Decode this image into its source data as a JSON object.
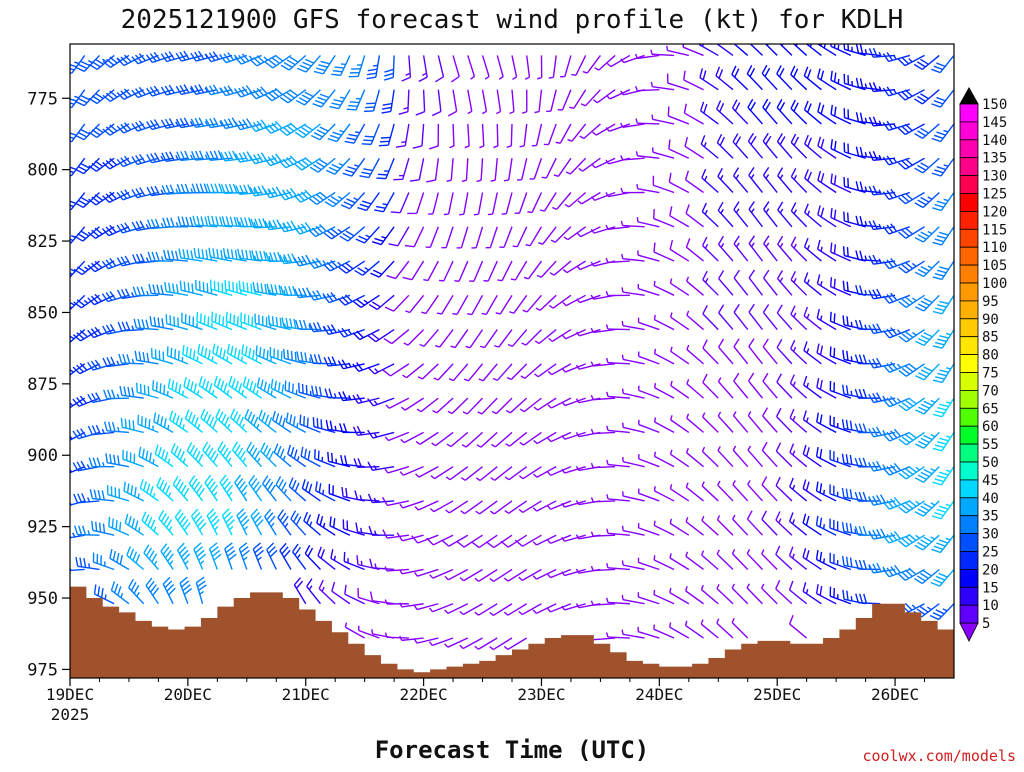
{
  "chart_data": {
    "type": "wind_profile",
    "title": "2025121900 GFS forecast wind profile (kt) for KDLH",
    "xlabel": "Forecast Time (UTC)",
    "ylabel": "",
    "credit": "coolwx.com/models",
    "x_ticks": [
      "19DEC",
      "20DEC",
      "21DEC",
      "22DEC",
      "23DEC",
      "24DEC",
      "25DEC",
      "26DEC"
    ],
    "x_year": "2025",
    "x_range_days": [
      0,
      7.5
    ],
    "y_ticks": [
      "775",
      "800",
      "825",
      "850",
      "875",
      "900",
      "925",
      "950",
      "975"
    ],
    "y_range_hpa": [
      756,
      978
    ],
    "levels_hpa": [
      760,
      772,
      784,
      796,
      808,
      820,
      832,
      844,
      856,
      868,
      880,
      892,
      904,
      916,
      928,
      940,
      952,
      964,
      976
    ],
    "time_step_hours": 6,
    "colorbar_labels": [
      "150",
      "145",
      "140",
      "135",
      "130",
      "125",
      "120",
      "115",
      "110",
      "105",
      "100",
      "95",
      "90",
      "85",
      "80",
      "75",
      "70",
      "65",
      "60",
      "55",
      "50",
      "45",
      "40",
      "35",
      "30",
      "25",
      "20",
      "15",
      "10",
      "5"
    ],
    "colorbar_colors": [
      "#ff00ff",
      "#ff00d8",
      "#ff00b0",
      "#ff0088",
      "#ff0050",
      "#ff0000",
      "#ff2200",
      "#ff4400",
      "#ff6600",
      "#ff8000",
      "#ff9900",
      "#ffb000",
      "#ffcc00",
      "#ffe600",
      "#ffff00",
      "#d8ff00",
      "#a0ff00",
      "#50ff00",
      "#00ff28",
      "#00ff80",
      "#00ffcc",
      "#00d8ff",
      "#00a8ff",
      "#0080ff",
      "#0050ff",
      "#0028ff",
      "#0000ff",
      "#3000ff",
      "#6000ff",
      "#8800ff"
    ],
    "terrain_color": "#a0522d",
    "surface_pressure_hpa": [
      946,
      950,
      953,
      955,
      958,
      960,
      961,
      960,
      957,
      953,
      950,
      948,
      948,
      950,
      954,
      958,
      962,
      966,
      970,
      973,
      975,
      976,
      975,
      974,
      973,
      972,
      970,
      968,
      966,
      964,
      963,
      963,
      966,
      969,
      972,
      973,
      974,
      974,
      973,
      971,
      968,
      966,
      965,
      965,
      966,
      966,
      964,
      961,
      957,
      952,
      952,
      955,
      958,
      961
    ]
  }
}
